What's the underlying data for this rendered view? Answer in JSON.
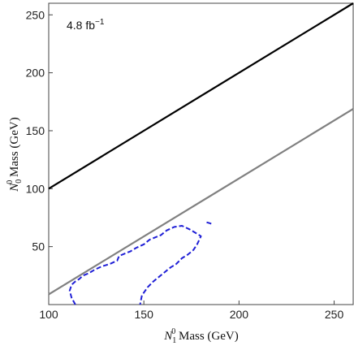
{
  "chart_data": {
    "type": "line",
    "annotation": {
      "text": "4.8 fb",
      "sup": "−1"
    },
    "xaxis": {
      "label_main": "N",
      "label_sub": "1",
      "label_sup": "0",
      "label_rest": " Mass (GeV)",
      "range": [
        100,
        260
      ],
      "ticks": [
        100,
        150,
        200,
        250
      ],
      "tick_labels": [
        "100",
        "150",
        "200",
        "250"
      ]
    },
    "yaxis": {
      "label_main": "N",
      "label_sub": "0",
      "label_sup": "0",
      "label_rest": " Mass (GeV)",
      "range": [
        0,
        260
      ],
      "ticks": [
        50,
        100,
        150,
        200,
        250
      ],
      "tick_labels": [
        "50",
        "100",
        "150",
        "200",
        "250"
      ]
    },
    "grid": false,
    "series": [
      {
        "style": "solid",
        "color": "#000000",
        "x": [
          100,
          260
        ],
        "y": [
          100,
          260
        ]
      },
      {
        "style": "solid",
        "color": "#808080",
        "x": [
          100,
          260
        ],
        "y": [
          8.8,
          168.8
        ]
      },
      {
        "style": "dashed",
        "color": "#1f1fd6",
        "x": [
          114,
          112,
          111,
          112,
          114,
          116,
          118,
          121,
          124,
          128,
          132,
          136,
          137,
          140,
          143,
          146,
          150,
          153,
          156,
          159,
          162,
          166,
          170,
          174,
          177,
          180,
          178,
          176,
          173,
          170,
          167,
          164,
          161,
          158,
          155,
          152,
          149,
          148
        ],
        "y": [
          0,
          6,
          12,
          17,
          20,
          22,
          25,
          27,
          30,
          33,
          35,
          38,
          42,
          44,
          46,
          49,
          52,
          56,
          58,
          60,
          64,
          67,
          68,
          65,
          62,
          59,
          52,
          47,
          43,
          40,
          35,
          32,
          28,
          24,
          20,
          15,
          8,
          0
        ]
      },
      {
        "style": "dashed",
        "color": "#1f1fd6",
        "x": [
          183,
          185,
          186
        ],
        "y": [
          71,
          70,
          69
        ]
      }
    ]
  }
}
